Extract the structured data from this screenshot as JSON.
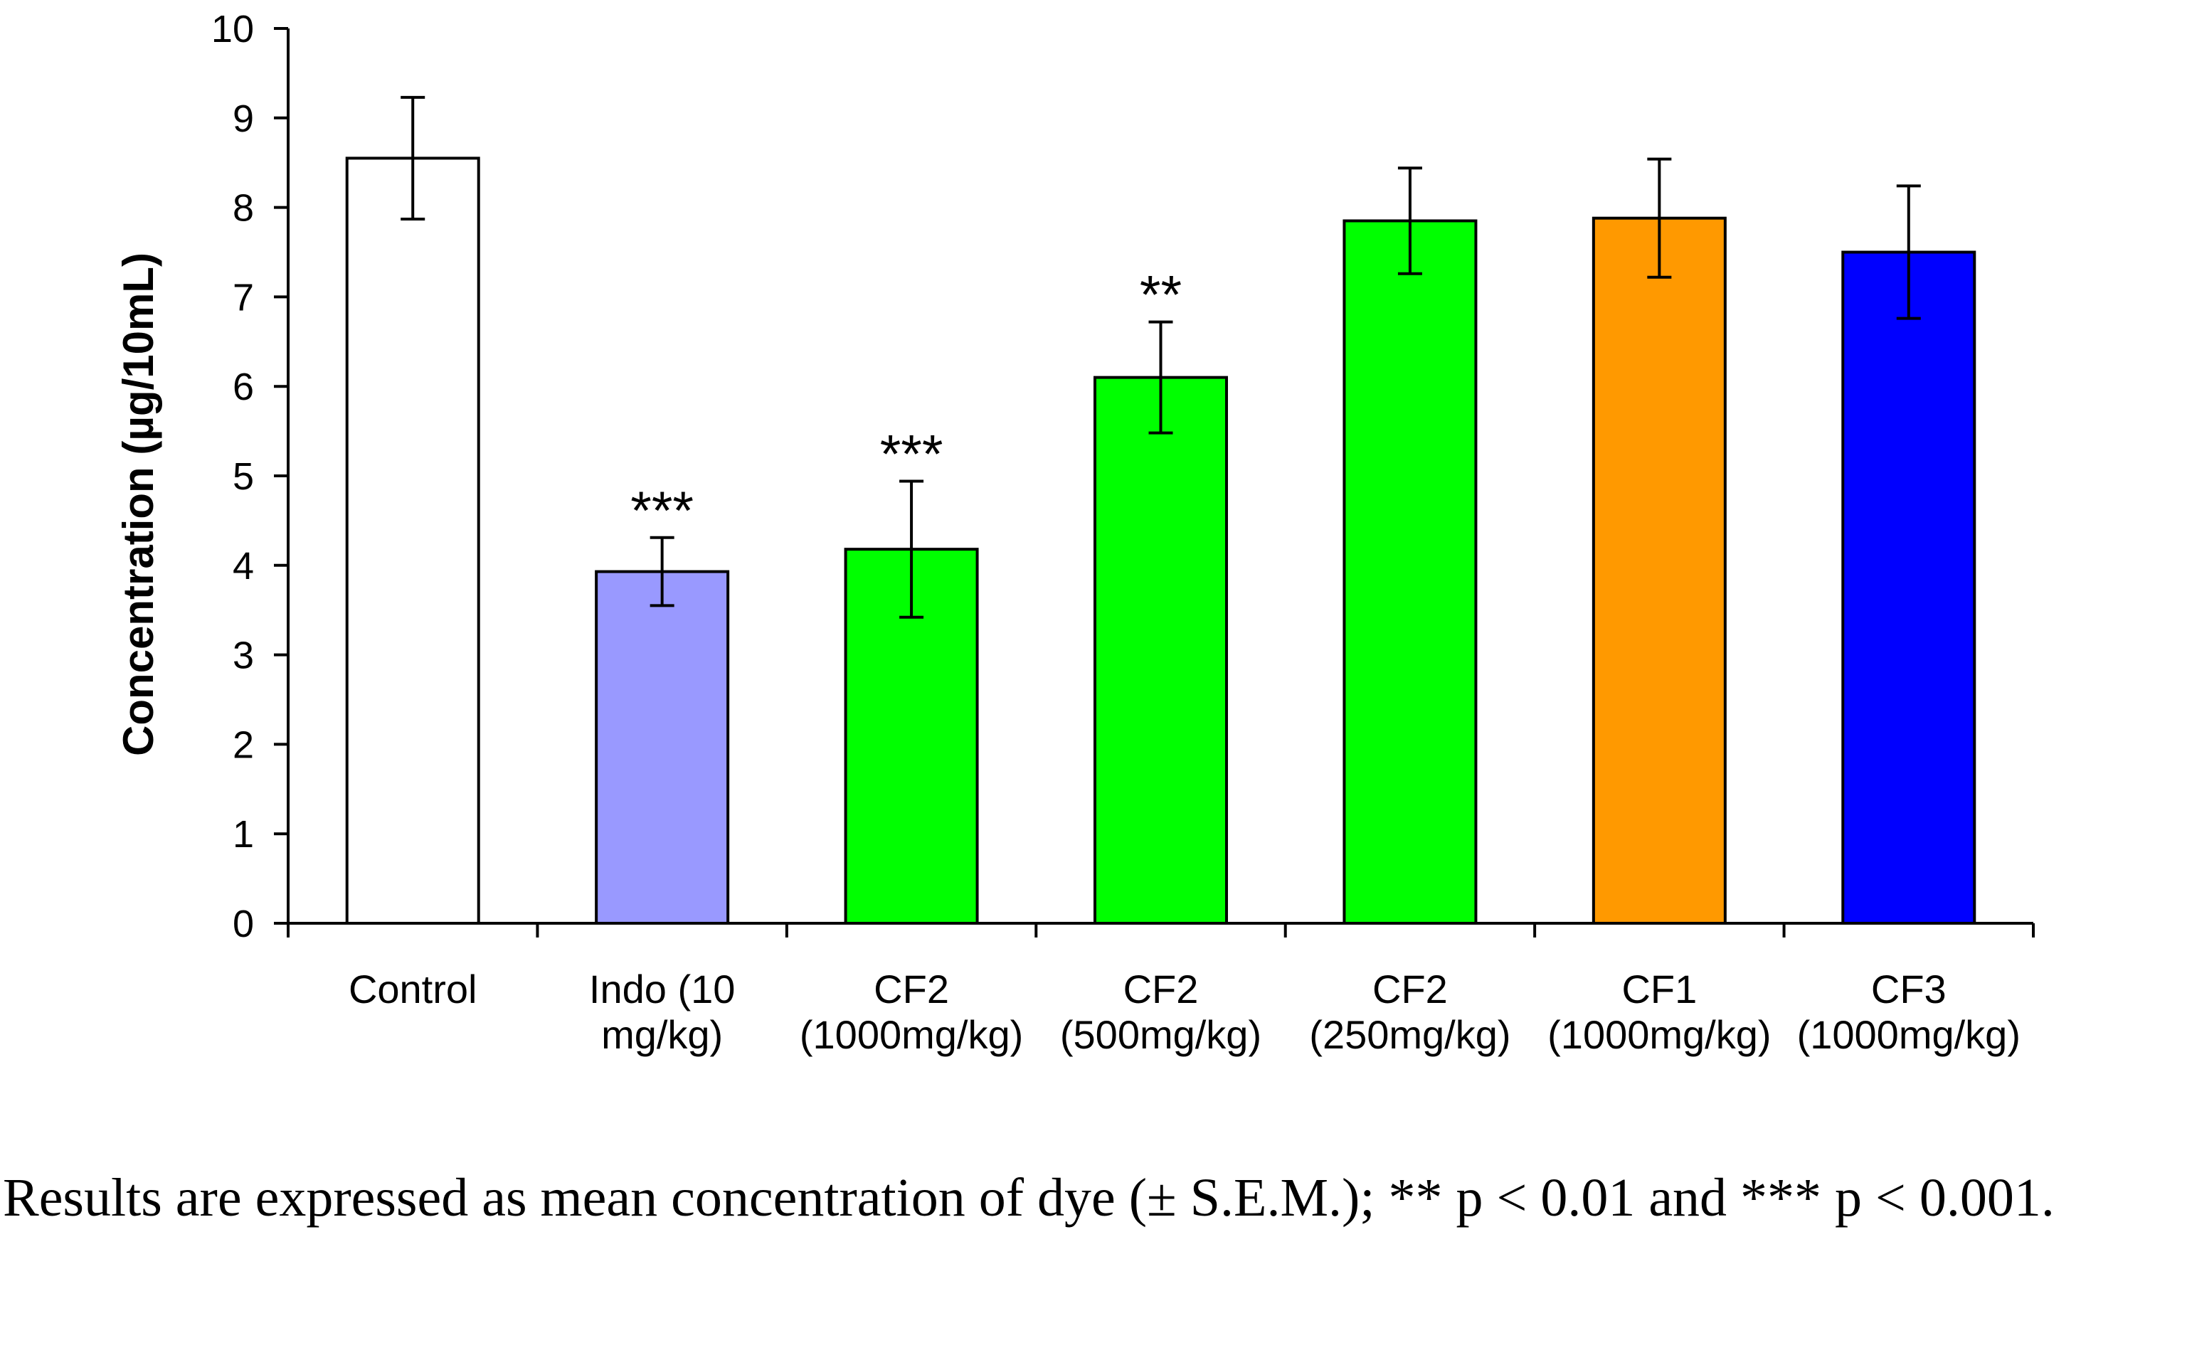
{
  "chart_data": {
    "type": "bar",
    "title": "",
    "xlabel": "",
    "ylabel": "Concentration (µg/10mL)",
    "ylim": [
      0,
      10
    ],
    "yticks": [
      0,
      1,
      2,
      3,
      4,
      5,
      6,
      7,
      8,
      9,
      10
    ],
    "grid": false,
    "categories": [
      [
        "Control"
      ],
      [
        "Indo (10",
        "mg/kg)"
      ],
      [
        "CF2",
        "(1000mg/kg)"
      ],
      [
        "CF2",
        "(500mg/kg)"
      ],
      [
        "CF2",
        "(250mg/kg)"
      ],
      [
        "CF1",
        "(1000mg/kg)"
      ],
      [
        "CF3",
        "(1000mg/kg)"
      ]
    ],
    "values": [
      8.55,
      3.93,
      4.18,
      6.1,
      7.85,
      7.88,
      7.5
    ],
    "errors": [
      0.68,
      0.38,
      0.76,
      0.62,
      0.59,
      0.66,
      0.74
    ],
    "significance": [
      "",
      "***",
      "***",
      "**",
      "",
      "",
      ""
    ],
    "colors": [
      "#ffffff",
      "#9999ff",
      "#00ff00",
      "#00ff00",
      "#00ff00",
      "#ff9900",
      "#0000ff"
    ]
  },
  "caption": "Results are expressed as mean concentration of dye (± S.E.M.); ** p < 0.01 and *** p < 0.001."
}
